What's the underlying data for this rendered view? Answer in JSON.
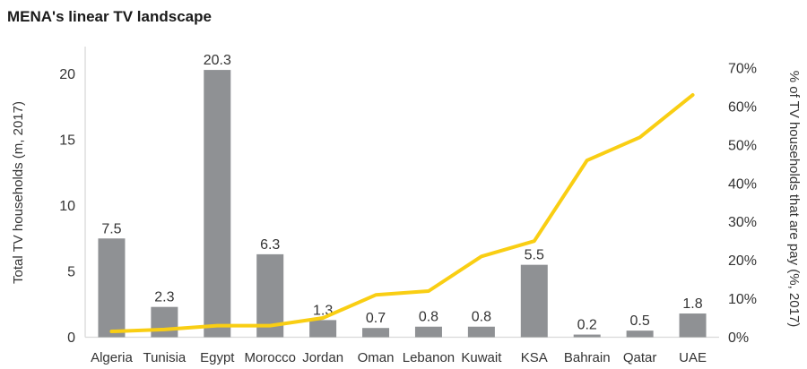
{
  "chart_data": {
    "type": "bar+line combo",
    "title": "MENA's linear TV landscape",
    "categories": [
      "Algeria",
      "Tunisia",
      "Egypt",
      "Morocco",
      "Jordan",
      "Oman",
      "Lebanon",
      "Kuwait",
      "KSA",
      "Bahrain",
      "Qatar",
      "UAE"
    ],
    "series": [
      {
        "name": "Total TV households (m, 2017)",
        "type": "bar",
        "axis": "left",
        "values": [
          7.5,
          2.3,
          20.3,
          6.3,
          1.3,
          0.7,
          0.8,
          0.8,
          5.5,
          0.2,
          0.5,
          1.8
        ],
        "value_labels": [
          "7.5",
          "2.3",
          "20.3",
          "6.3",
          "1.3",
          "0.7",
          "0.8",
          "0.8",
          "5.5",
          "0.2",
          "0.5",
          "1.8"
        ]
      },
      {
        "name": "% of TV households that are pay (%, 2017)",
        "type": "line",
        "axis": "right",
        "values": [
          1.5,
          2,
          3,
          3,
          5,
          11,
          12,
          21,
          25,
          46,
          52,
          63
        ]
      }
    ],
    "left_axis": {
      "label": "Total TV households (m, 2017)",
      "min": 0,
      "max": 20,
      "step": 5,
      "tick_labels": [
        "0",
        "5",
        "10",
        "15",
        "20"
      ]
    },
    "right_axis": {
      "label": "% of TV households that are pay (%, 2017)",
      "min": 0,
      "max": 70,
      "step": 10,
      "tick_labels": [
        "0%",
        "10%",
        "20%",
        "30%",
        "40%",
        "50%",
        "60%",
        "70%"
      ]
    },
    "legend": "none",
    "grid": false
  },
  "colors": {
    "bar": "#8F9194",
    "line": "#F9CE13",
    "axis_line": "#D9D9D9",
    "tick_text": "#333333",
    "label_text": "#333333",
    "title_text": "#1A1A1A"
  }
}
